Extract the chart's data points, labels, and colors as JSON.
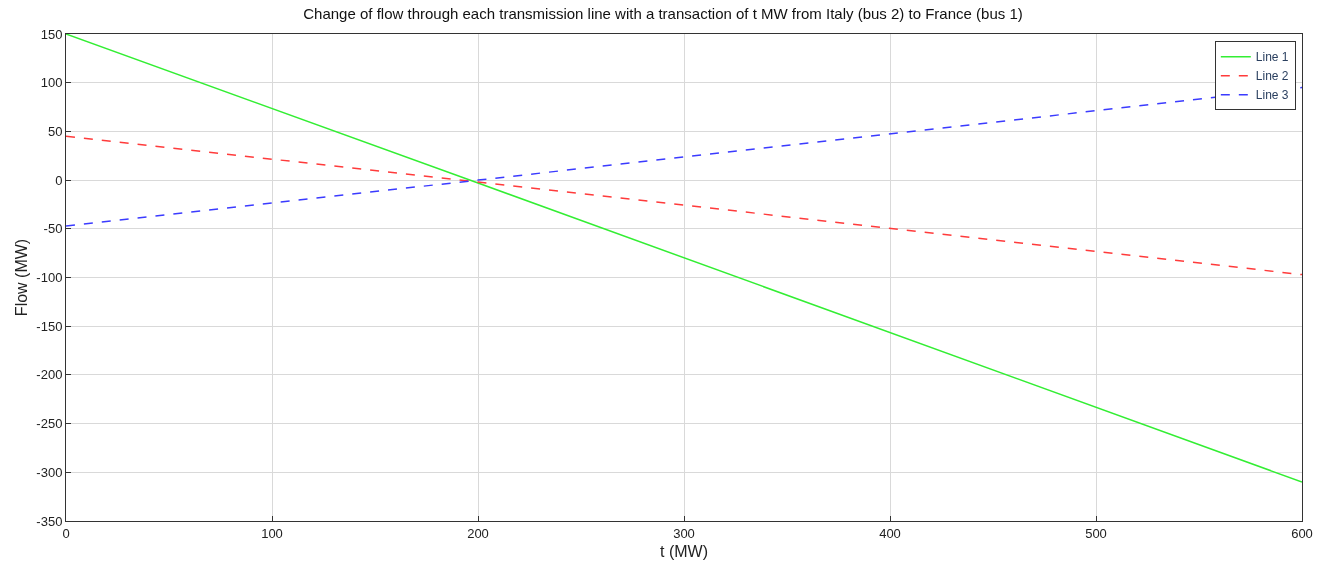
{
  "chart_data": {
    "type": "line",
    "title": "Change of flow through each transmission line with a transaction of t MW from Italy (bus 2) to France (bus 1)",
    "xlabel": "t (MW)",
    "ylabel": "Flow (MW)",
    "x": [
      0,
      200,
      600
    ],
    "series": [
      {
        "name": "Line 1",
        "color": "#33ee33",
        "line_style": "solid",
        "values": [
          150,
          -3,
          -310
        ]
      },
      {
        "name": "Line 2",
        "color": "#ff3b3b",
        "line_style": "dashed",
        "values": [
          45,
          -2,
          -97
        ]
      },
      {
        "name": "Line 3",
        "color": "#3b3bff",
        "line_style": "dashed",
        "values": [
          -47,
          0,
          95
        ]
      }
    ],
    "xlim": [
      0,
      600
    ],
    "xticks": [
      0,
      100,
      200,
      300,
      400,
      500,
      600
    ],
    "ylim": [
      -350,
      150
    ],
    "yticks": [
      -350,
      -300,
      -250,
      -200,
      -150,
      -100,
      -50,
      0,
      50,
      100,
      150
    ],
    "grid": true,
    "legend": "top right",
    "marker": "none"
  }
}
